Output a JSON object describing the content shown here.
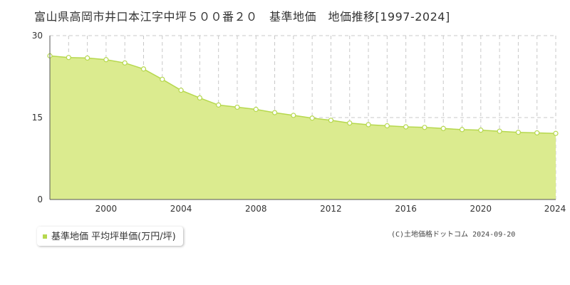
{
  "chart_data": {
    "type": "area",
    "title": "富山県高岡市井口本江字中坪５００番２０　基準地価　地価推移[1997-2024]",
    "xlabel": "",
    "ylabel": "",
    "x": [
      1997,
      1998,
      1999,
      2000,
      2001,
      2002,
      2003,
      2004,
      2005,
      2006,
      2007,
      2008,
      2009,
      2010,
      2011,
      2012,
      2013,
      2014,
      2015,
      2016,
      2017,
      2018,
      2019,
      2020,
      2021,
      2022,
      2023,
      2024
    ],
    "series": [
      {
        "name": "基準地価 平均坪単価(万円/坪)",
        "values": [
          26.3,
          26.0,
          25.9,
          25.6,
          25.0,
          23.9,
          22.0,
          20.0,
          18.6,
          17.3,
          16.9,
          16.5,
          15.9,
          15.4,
          14.9,
          14.5,
          14.0,
          13.7,
          13.5,
          13.3,
          13.2,
          13.0,
          12.8,
          12.7,
          12.5,
          12.3,
          12.2,
          12.1
        ]
      }
    ],
    "xlim": [
      1997,
      2024
    ],
    "ylim": [
      0,
      30
    ],
    "yticks": [
      0,
      15,
      30
    ],
    "xticks": [
      2000,
      2004,
      2008,
      2012,
      2016,
      2020,
      2024
    ],
    "grid": true,
    "legend_position": "bottom-left",
    "colors": {
      "fill": "#dbeb8f",
      "line": "#b6d84e",
      "marker_fill": "#ffffff"
    }
  },
  "copyright": "(C)土地価格ドットコム 2024-09-20"
}
